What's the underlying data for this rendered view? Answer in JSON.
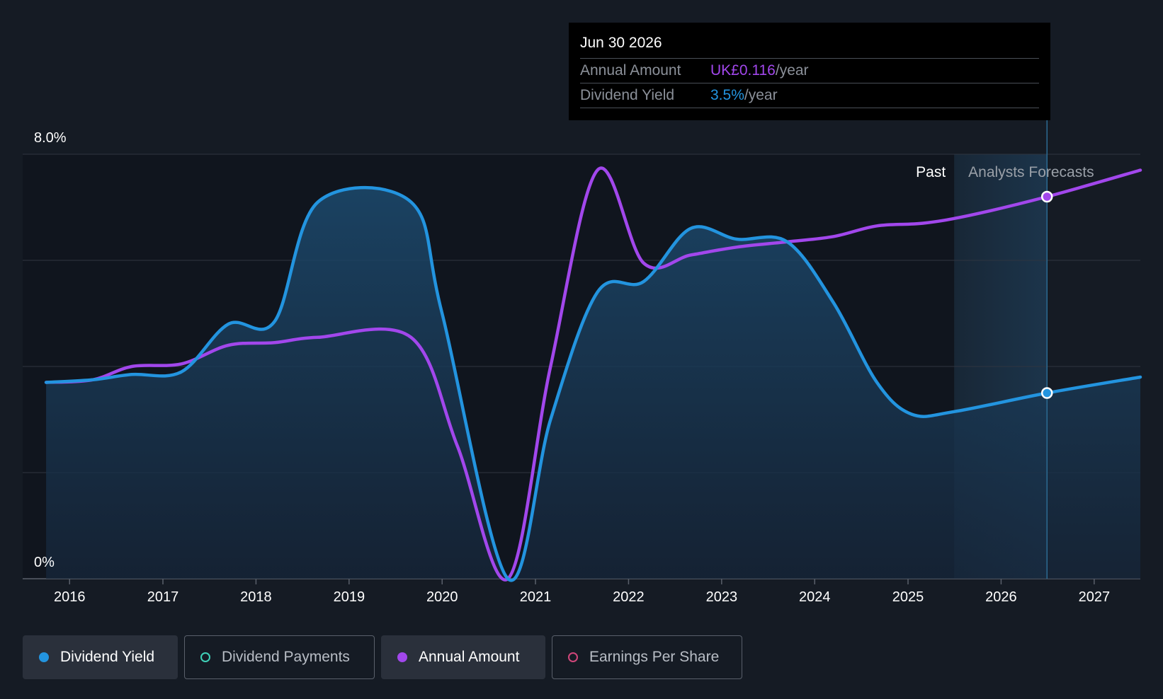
{
  "chart_data": {
    "type": "line",
    "y_axis_labels": [
      "8.0%",
      "0%"
    ],
    "ylim": [
      0,
      8.0
    ],
    "y_unit": "%",
    "x_ticks": [
      "2016",
      "2017",
      "2018",
      "2019",
      "2020",
      "2021",
      "2022",
      "2023",
      "2024",
      "2025",
      "2026",
      "2027"
    ],
    "xlim": [
      "2015-07-01",
      "2027-07-01"
    ],
    "grid": true,
    "region_labels": {
      "past": "Past",
      "forecast": "Analysts Forecasts"
    },
    "forecast_start": "2025-07-01",
    "series": [
      {
        "name": "Dividend Yield",
        "color": "#2394df",
        "fill": true,
        "points": [
          [
            "2015-10-01",
            3.7
          ],
          [
            "2016-04-01",
            3.75
          ],
          [
            "2016-09-01",
            3.85
          ],
          [
            "2017-03-15",
            3.9
          ],
          [
            "2017-09-15",
            4.8
          ],
          [
            "2018-03-15",
            4.85
          ],
          [
            "2018-09-01",
            7.1
          ],
          [
            "2019-09-01",
            7.1
          ],
          [
            "2020-01-01",
            5.0
          ],
          [
            "2020-09-15",
            0.0
          ],
          [
            "2021-03-01",
            3.0
          ],
          [
            "2021-09-01",
            5.4
          ],
          [
            "2022-03-01",
            5.6
          ],
          [
            "2022-09-01",
            6.6
          ],
          [
            "2023-03-01",
            6.4
          ],
          [
            "2023-09-15",
            6.35
          ],
          [
            "2024-03-15",
            5.2
          ],
          [
            "2024-09-01",
            3.7
          ],
          [
            "2025-01-15",
            3.1
          ],
          [
            "2025-07-01",
            3.15
          ],
          [
            "2026-06-30",
            3.5
          ],
          [
            "2027-07-01",
            3.8
          ]
        ]
      },
      {
        "name": "Annual Amount",
        "color": "#a247ec",
        "fill": false,
        "points": [
          [
            "2015-10-01",
            3.7
          ],
          [
            "2016-04-01",
            3.75
          ],
          [
            "2016-09-01",
            4.0
          ],
          [
            "2017-03-15",
            4.05
          ],
          [
            "2017-09-15",
            4.4
          ],
          [
            "2018-03-15",
            4.45
          ],
          [
            "2018-09-01",
            4.55
          ],
          [
            "2019-09-01",
            4.55
          ],
          [
            "2020-03-01",
            2.5
          ],
          [
            "2020-09-15",
            0.0
          ],
          [
            "2021-03-01",
            4.0
          ],
          [
            "2021-09-01",
            7.7
          ],
          [
            "2022-03-01",
            5.95
          ],
          [
            "2022-09-01",
            6.1
          ],
          [
            "2023-03-01",
            6.25
          ],
          [
            "2023-09-15",
            6.35
          ],
          [
            "2024-03-15",
            6.45
          ],
          [
            "2024-09-01",
            6.65
          ],
          [
            "2025-03-01",
            6.7
          ],
          [
            "2025-09-01",
            6.85
          ],
          [
            "2026-06-30",
            7.2
          ],
          [
            "2027-07-01",
            7.7
          ]
        ]
      }
    ],
    "highlight": {
      "date": "2026-06-30"
    }
  },
  "tooltip": {
    "date": "Jun 30 2026",
    "annual_amount_label": "Annual Amount",
    "annual_amount_value": "UK£0.116",
    "annual_amount_unit": "/year",
    "dividend_yield_label": "Dividend Yield",
    "dividend_yield_value": "3.5%",
    "dividend_yield_unit": "/year"
  },
  "legend": [
    {
      "label": "Dividend Yield",
      "color": "#2394df",
      "active": true
    },
    {
      "label": "Dividend Payments",
      "color": "#3fd1b8",
      "active": false
    },
    {
      "label": "Annual Amount",
      "color": "#a247ec",
      "active": true
    },
    {
      "label": "Earnings Per Share",
      "color": "#d0467a",
      "active": false
    }
  ]
}
